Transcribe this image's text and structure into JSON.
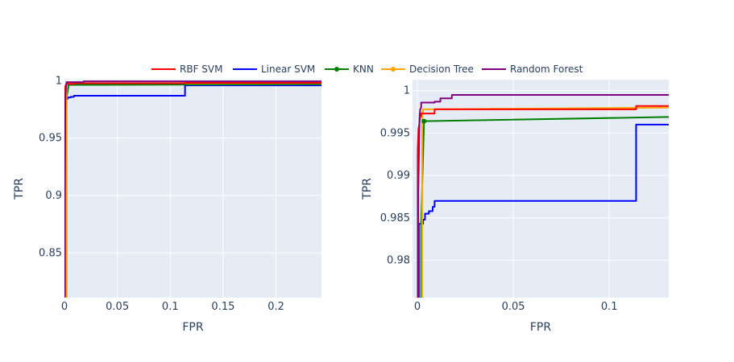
{
  "chart_data": {
    "type": "line",
    "legend": {
      "placement": "top-center",
      "items": [
        {
          "name": "RBF SVM",
          "color": "#ff0000",
          "marker": false
        },
        {
          "name": "Linear SVM",
          "color": "#0000ff",
          "marker": false
        },
        {
          "name": "KNN",
          "color": "#008000",
          "marker": true
        },
        {
          "name": "Decision Tree",
          "color": "#ffa500",
          "marker": true
        },
        {
          "name": "Random Forest",
          "color": "#800080",
          "marker": false
        }
      ]
    },
    "plot_background": "#e5ecf6",
    "grid": true,
    "panels": [
      {
        "xlabel": "FPR",
        "ylabel": "TPR",
        "xlim": [
          0,
          0.243
        ],
        "ylim": [
          0.811,
          1.001
        ],
        "xticks": [
          0,
          0.05,
          0.1,
          0.15,
          0.2
        ],
        "xtick_labels": [
          "0",
          "0.05",
          "0.1",
          "0.15",
          "0.2"
        ],
        "yticks": [
          0.85,
          0.9,
          0.95,
          1
        ],
        "ytick_labels": [
          "0.85",
          "0.9",
          "0.95",
          "1"
        ],
        "series": [
          {
            "name": "Linear SVM",
            "x": [
              0,
              0.0008,
              0.0008,
              0.003,
              0.003,
              0.006,
              0.006,
              0.009,
              0.009,
              0.114,
              0.114,
              0.243
            ],
            "y": [
              0.811,
              0.811,
              0.9843,
              0.9843,
              0.9855,
              0.9855,
              0.986,
              0.986,
              0.987,
              0.987,
              0.996,
              0.996
            ]
          },
          {
            "name": "KNN",
            "x": [
              0,
              0.002,
              0.002,
              0.004,
              0.243
            ],
            "y": [
              0.811,
              0.811,
              0.985,
              0.9964,
              0.997
            ]
          },
          {
            "name": "Decision Tree",
            "x": [
              0,
              0.002,
              0.002,
              0.003,
              0.003,
              0.243
            ],
            "y": [
              0.811,
              0.811,
              0.9975,
              0.9975,
              0.9978,
              0.998
            ]
          },
          {
            "name": "RBF SVM",
            "x": [
              0,
              0.0005,
              0.001,
              0.002,
              0.002,
              0.009,
              0.009,
              0.114,
              0.114,
              0.243
            ],
            "y": [
              0.811,
              0.993,
              0.996,
              0.997,
              0.9973,
              0.9973,
              0.9978,
              0.9978,
              0.9982,
              0.9982
            ]
          },
          {
            "name": "Random Forest",
            "x": [
              0,
              0.0008,
              0.001,
              0.0015,
              0.002,
              0.002,
              0.018,
              0.018,
              0.243
            ],
            "y": [
              0.811,
              0.975,
              0.988,
              0.995,
              0.9985,
              0.9988,
              0.9988,
              0.9995,
              0.9995
            ]
          }
        ]
      },
      {
        "xlabel": "FPR",
        "ylabel": "TPR",
        "xlim": [
          -0.0025,
          0.131
        ],
        "ylim": [
          0.9756,
          1.0013
        ],
        "xticks": [
          0,
          0.05,
          0.1
        ],
        "xtick_labels": [
          "0",
          "0.05",
          "0.1"
        ],
        "yticks": [
          0.98,
          0.985,
          0.99,
          0.995,
          1
        ],
        "ytick_labels": [
          "0.98",
          "0.985",
          "0.99",
          "0.995",
          "1"
        ],
        "series": [
          {
            "name": "Linear SVM",
            "x": [
              0.0008,
              0.0008,
              0.003,
              0.003,
              0.004,
              0.004,
              0.006,
              0.006,
              0.008,
              0.008,
              0.009,
              0.009,
              0.114,
              0.114,
              0.131
            ],
            "y": [
              0.9756,
              0.9843,
              0.9843,
              0.9848,
              0.9848,
              0.9855,
              0.9855,
              0.9858,
              0.9858,
              0.9863,
              0.9863,
              0.987,
              0.987,
              0.996,
              0.996
            ]
          },
          {
            "name": "KNN",
            "x": [
              0.002,
              0.002,
              0.0035,
              0.131
            ],
            "y": [
              0.9756,
              0.9845,
              0.9964,
              0.9969
            ]
          },
          {
            "name": "Decision Tree",
            "x": [
              0.0025,
              0.0025,
              0.003,
              0.003,
              0.004,
              0.131
            ],
            "y": [
              0.9756,
              0.9975,
              0.9975,
              0.9978,
              0.9978,
              0.998
            ]
          },
          {
            "name": "RBF SVM",
            "x": [
              0.0002,
              0.0002,
              0.0006,
              0.001,
              0.0015,
              0.002,
              0.002,
              0.009,
              0.009,
              0.114,
              0.114,
              0.131
            ],
            "y": [
              0.9756,
              0.993,
              0.9955,
              0.996,
              0.997,
              0.997,
              0.9973,
              0.9973,
              0.9978,
              0.9978,
              0.9982,
              0.9982
            ]
          },
          {
            "name": "Random Forest",
            "x": [
              0.0005,
              0.0005,
              0.001,
              0.0012,
              0.0015,
              0.002,
              0.002,
              0.009,
              0.009,
              0.012,
              0.012,
              0.018,
              0.018,
              0.131
            ],
            "y": [
              0.9756,
              0.988,
              0.995,
              0.997,
              0.9978,
              0.998,
              0.9986,
              0.9986,
              0.9987,
              0.9987,
              0.9991,
              0.9991,
              0.9995,
              0.9995
            ]
          }
        ],
        "markers": [
          {
            "name": "KNN",
            "x": 0.0035,
            "y": 0.9964
          }
        ]
      }
    ]
  }
}
